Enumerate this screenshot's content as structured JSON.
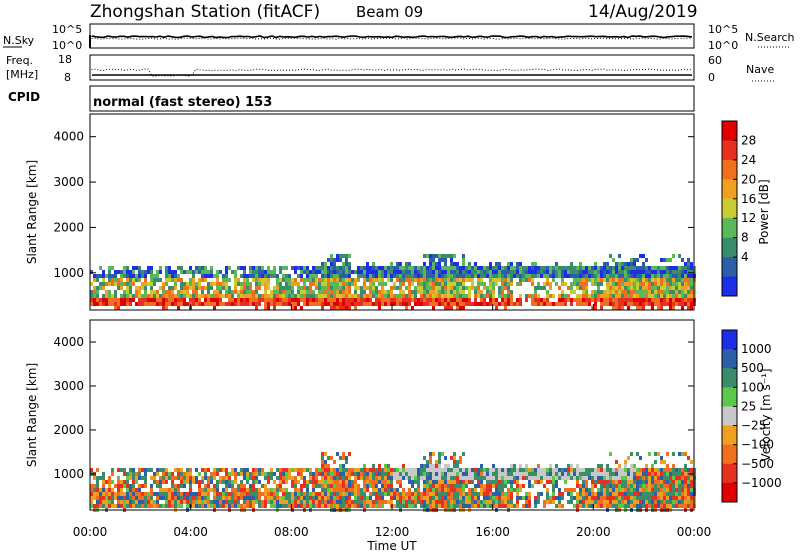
{
  "header": {
    "station": "Zhongshan Station (fitACF)",
    "beam": "Beam 09",
    "date": "14/Aug/2019"
  },
  "nsky_panel": {
    "left_label": "N.Sky",
    "left_top_tick": "10^5",
    "left_bottom_tick": "10^0",
    "right_top_tick": "10^5",
    "right_bottom_tick": "10^0",
    "right_label": "N.Search"
  },
  "freq_panel": {
    "left_label_line1": "Freq.",
    "left_label_line2": "[MHz]",
    "left_top_tick": "18",
    "left_bottom_tick": "8",
    "right_top_tick": "60",
    "right_bottom_tick": "0",
    "right_label": "Nave"
  },
  "cpid": {
    "label": "CPID",
    "text": "normal (fast stereo) 153"
  },
  "time_axis": {
    "label": "Time UT",
    "ticks": [
      "00:00",
      "04:00",
      "08:00",
      "12:00",
      "16:00",
      "20:00",
      "00:00"
    ]
  },
  "chart_data": [
    {
      "type": "heatmap",
      "ylabel": "Slant Range [km]",
      "xlabel": "Time UT",
      "ylim": [
        180,
        4500
      ],
      "yticks": [
        "1000",
        "2000",
        "3000",
        "4000"
      ],
      "colorbar_label": "Power [dB]",
      "colorbar_ticks": [
        "4",
        "8",
        "12",
        "16",
        "20",
        "24",
        "28"
      ],
      "colors": [
        "#1e2ee8",
        "#2b5fa8",
        "#3a8c6a",
        "#5bb85a",
        "#c8cc2e",
        "#f0a020",
        "#f07020",
        "#e83020",
        "#e00000"
      ],
      "grid": false
    },
    {
      "type": "heatmap",
      "ylabel": "Slant Range [km]",
      "xlabel": "Time UT",
      "ylim": [
        180,
        4500
      ],
      "yticks": [
        "1000",
        "2000",
        "3000",
        "4000"
      ],
      "colorbar_label": "Velocity [m s⁻¹]",
      "colorbar_ticks": [
        "1000",
        "500",
        "100",
        "25",
        "−25",
        "−100",
        "−500",
        "−1000"
      ],
      "colors": [
        "#1e2ee8",
        "#2b5fa8",
        "#3a8c6a",
        "#5bc84a",
        "#c8c8c8",
        "#f0a020",
        "#f07020",
        "#e83020",
        "#e00000"
      ],
      "grid": false
    }
  ]
}
